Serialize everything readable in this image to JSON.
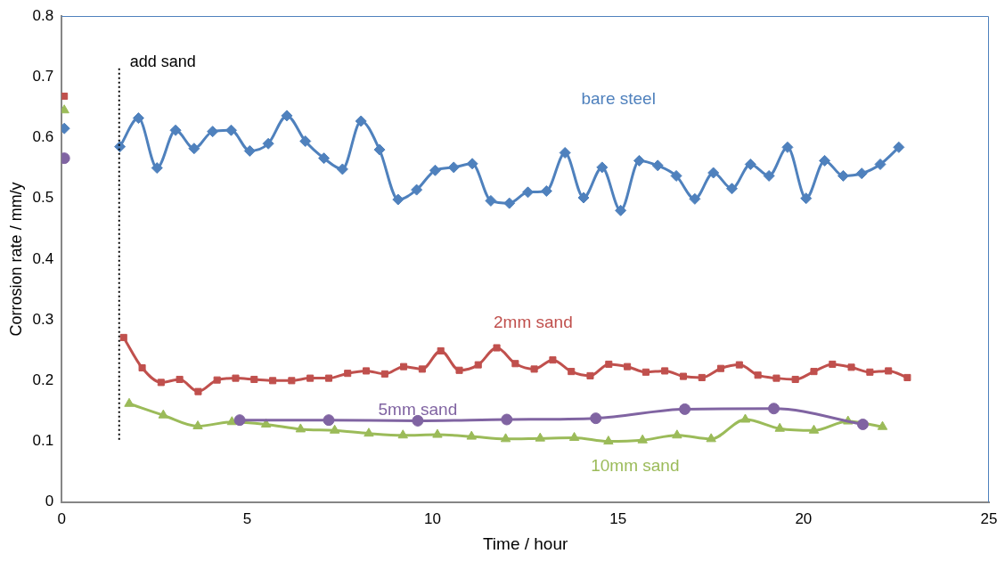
{
  "chart_data": {
    "type": "line",
    "xlabel": "Time / hour",
    "ylabel": "Corrosion rate / mm/y",
    "xlim": [
      0,
      25
    ],
    "xticks": [
      0,
      5,
      10,
      15,
      20,
      25
    ],
    "ylim": [
      0,
      0.8
    ],
    "yticks": [
      0,
      0.1,
      0.2,
      0.3,
      0.4,
      0.5,
      0.6,
      0.7,
      0.8
    ],
    "grid": false,
    "legend": false,
    "ref_lines": [
      {
        "axis": "x",
        "value": 1.55,
        "label": "add sand",
        "color": "#000000",
        "line_style": "dotted"
      }
    ],
    "series": [
      {
        "name": "bare steel",
        "color": "#4f81bd",
        "marker": "diamond",
        "x": [
          1.57,
          2.07,
          2.57,
          3.07,
          3.57,
          4.07,
          4.57,
          5.07,
          5.57,
          6.07,
          6.57,
          7.07,
          7.57,
          8.07,
          8.57,
          9.07,
          9.57,
          10.07,
          10.57,
          11.07,
          11.57,
          12.07,
          12.57,
          13.07,
          13.57,
          14.07,
          14.57,
          15.07,
          15.57,
          16.07,
          16.57,
          17.07,
          17.57,
          18.07,
          18.57,
          19.07,
          19.57,
          20.07,
          20.57,
          21.07,
          21.57,
          22.07,
          22.57
        ],
        "values": [
          0.585,
          0.632,
          0.55,
          0.612,
          0.582,
          0.61,
          0.612,
          0.578,
          0.59,
          0.636,
          0.594,
          0.566,
          0.548,
          0.627,
          0.58,
          0.498,
          0.514,
          0.546,
          0.551,
          0.557,
          0.496,
          0.492,
          0.51,
          0.512,
          0.575,
          0.501,
          0.551,
          0.48,
          0.562,
          0.554,
          0.537,
          0.499,
          0.542,
          0.516,
          0.556,
          0.537,
          0.584,
          0.5,
          0.562,
          0.537,
          0.541,
          0.556,
          0.584
        ]
      },
      {
        "name": "2mm sand",
        "color": "#c0504d",
        "marker": "square",
        "x": [
          1.67,
          2.17,
          2.68,
          3.18,
          3.68,
          4.19,
          4.69,
          5.19,
          5.69,
          6.2,
          6.7,
          7.2,
          7.71,
          8.21,
          8.71,
          9.22,
          9.72,
          10.22,
          10.72,
          11.23,
          11.73,
          12.23,
          12.74,
          13.24,
          13.74,
          14.25,
          14.75,
          15.25,
          15.75,
          16.26,
          16.76,
          17.26,
          17.77,
          18.27,
          18.77,
          19.27,
          19.78,
          20.28,
          20.78,
          21.29,
          21.79,
          22.29,
          22.8
        ],
        "values": [
          0.271,
          0.221,
          0.197,
          0.202,
          0.182,
          0.201,
          0.204,
          0.202,
          0.2,
          0.2,
          0.204,
          0.204,
          0.212,
          0.216,
          0.211,
          0.223,
          0.219,
          0.249,
          0.217,
          0.226,
          0.254,
          0.228,
          0.219,
          0.234,
          0.215,
          0.208,
          0.227,
          0.223,
          0.214,
          0.216,
          0.207,
          0.205,
          0.22,
          0.226,
          0.209,
          0.204,
          0.202,
          0.215,
          0.227,
          0.222,
          0.214,
          0.216,
          0.205
        ]
      },
      {
        "name": "5mm sand",
        "color": "#8064a2",
        "marker": "circle",
        "x": [
          4.8,
          7.2,
          9.6,
          12.0,
          14.4,
          16.8,
          19.2,
          21.6
        ],
        "values": [
          0.135,
          0.135,
          0.134,
          0.136,
          0.138,
          0.153,
          0.154,
          0.128
        ]
      },
      {
        "name": "10mm sand",
        "color": "#9bbb59",
        "marker": "triangle",
        "x": [
          1.82,
          2.74,
          3.67,
          4.59,
          5.51,
          6.44,
          7.36,
          8.28,
          9.2,
          10.13,
          11.05,
          11.97,
          12.9,
          13.82,
          14.74,
          15.66,
          16.59,
          17.51,
          18.43,
          19.36,
          20.28,
          21.2,
          22.13
        ],
        "values": [
          0.162,
          0.143,
          0.125,
          0.132,
          0.128,
          0.12,
          0.118,
          0.113,
          0.11,
          0.111,
          0.108,
          0.104,
          0.105,
          0.106,
          0.1,
          0.102,
          0.11,
          0.104,
          0.136,
          0.121,
          0.118,
          0.133,
          0.124
        ]
      },
      {
        "type": "scatter",
        "color": "#4f81bd",
        "marker": "diamond",
        "x": [
          0.07
        ],
        "values": [
          0.615
        ]
      },
      {
        "type": "scatter",
        "color": "#c0504d",
        "marker": "square",
        "x": [
          0.07
        ],
        "values": [
          0.668
        ]
      },
      {
        "type": "scatter",
        "color": "#8064a2",
        "marker": "circle",
        "x": [
          0.07
        ],
        "values": [
          0.566
        ]
      },
      {
        "type": "scatter",
        "color": "#9bbb59",
        "marker": "triangle",
        "x": [
          0.07
        ],
        "values": [
          0.645
        ]
      }
    ]
  }
}
